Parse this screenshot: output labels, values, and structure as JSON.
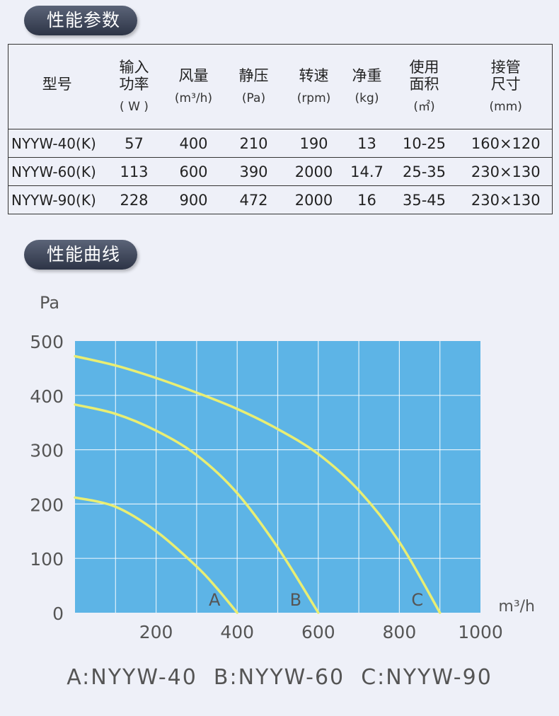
{
  "sections": {
    "specs_title": "性能参数",
    "chart_title": "性能曲线"
  },
  "table": {
    "headers": [
      {
        "label": "型号",
        "unit": ""
      },
      {
        "label": "输入 功率",
        "unit": "( W )"
      },
      {
        "label": "风量",
        "unit": "(m³/h)"
      },
      {
        "label": "静压",
        "unit": "(Pa)"
      },
      {
        "label": "转速",
        "unit": "(rpm)"
      },
      {
        "label": "净重",
        "unit": "(kg)"
      },
      {
        "label": "使用 面积",
        "unit": "(㎡)"
      },
      {
        "label": "接管 尺寸",
        "unit": "(mm)"
      }
    ],
    "rows": [
      [
        "NYYW-40(K)",
        "57",
        "400",
        "210",
        "190",
        "13",
        "10-25",
        "160×120"
      ],
      [
        "NYYW-60(K)",
        "113",
        "600",
        "390",
        "2000",
        "14.7",
        "25-35",
        "230×130"
      ],
      [
        "NYYW-90(K)",
        "228",
        "900",
        "472",
        "2000",
        "16",
        "35-45",
        "230×130"
      ]
    ]
  },
  "chart_data": {
    "type": "line",
    "title": "",
    "xlabel": "m³/h",
    "ylabel": "Pa",
    "xlim": [
      0,
      1000
    ],
    "ylim": [
      0,
      500
    ],
    "x_ticks": [
      200,
      400,
      600,
      800,
      1000
    ],
    "y_ticks": [
      0,
      100,
      200,
      300,
      400,
      500
    ],
    "grid": true,
    "plot_background": "#5db4e6",
    "grid_color": "#ffffff",
    "line_color": "#e9ee73",
    "series": [
      {
        "name": "A",
        "x": [
          0,
          100,
          200,
          300,
          350,
          400
        ],
        "y": [
          212,
          195,
          150,
          85,
          45,
          0
        ]
      },
      {
        "name": "B",
        "x": [
          0,
          100,
          200,
          300,
          400,
          500,
          600
        ],
        "y": [
          383,
          366,
          335,
          290,
          220,
          120,
          0
        ]
      },
      {
        "name": "C",
        "x": [
          0,
          100,
          200,
          300,
          400,
          500,
          600,
          700,
          800,
          900
        ],
        "y": [
          472,
          455,
          432,
          405,
          375,
          338,
          292,
          225,
          130,
          0
        ]
      }
    ],
    "legend": "A:NYYW-40  B:NYYW-60  C:NYYW-90"
  }
}
